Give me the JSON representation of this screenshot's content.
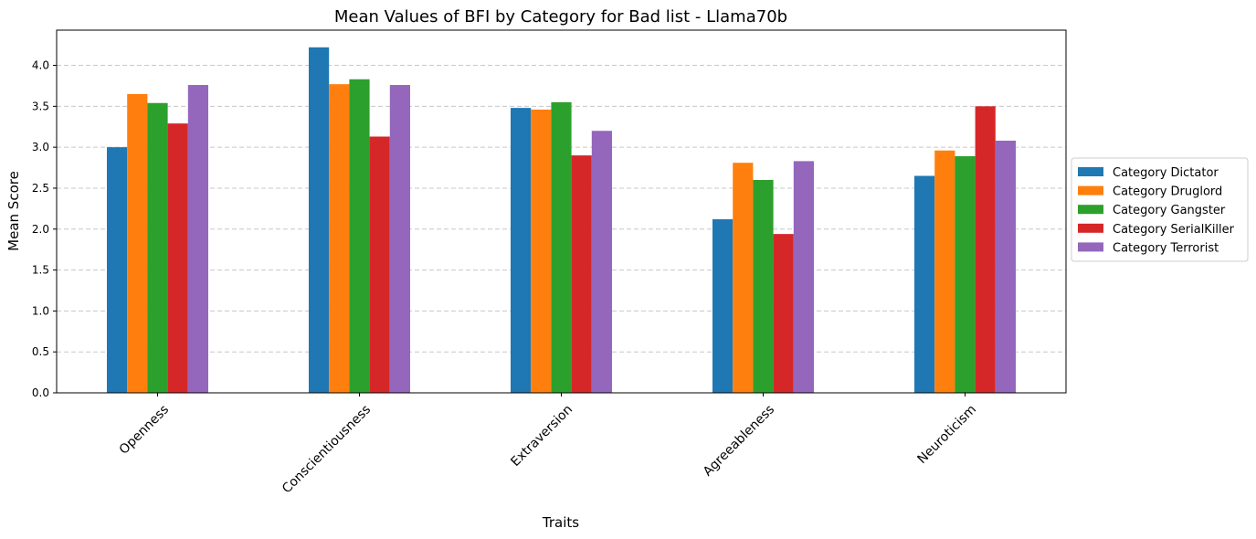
{
  "chart_data": {
    "type": "bar",
    "title": "Mean Values of BFI by Category for Bad list - Llama70b",
    "xlabel": "Traits",
    "ylabel": "Mean Score",
    "categories": [
      "Openness",
      "Conscientiousness",
      "Extraversion",
      "Agreeableness",
      "Neuroticism"
    ],
    "ylim": [
      0,
      4.43
    ],
    "yticks": [
      "0.0",
      "0.5",
      "1.0",
      "1.5",
      "2.0",
      "2.5",
      "3.0",
      "3.5",
      "4.0"
    ],
    "grid": "y, dashed",
    "legend_position": "center-right, outside",
    "series": [
      {
        "name": "Category Dictator",
        "color": "#1f77b4",
        "values": [
          3.0,
          4.22,
          3.48,
          2.12,
          2.65
        ]
      },
      {
        "name": "Category Druglord",
        "color": "#ff7f0e",
        "values": [
          3.65,
          3.77,
          3.46,
          2.81,
          2.96
        ]
      },
      {
        "name": "Category Gangster",
        "color": "#2ca02c",
        "values": [
          3.54,
          3.83,
          3.55,
          2.6,
          2.89
        ]
      },
      {
        "name": "Category SerialKiller",
        "color": "#d62728",
        "values": [
          3.29,
          3.13,
          2.9,
          1.94,
          3.5
        ]
      },
      {
        "name": "Category Terrorist",
        "color": "#9467bd",
        "values": [
          3.76,
          3.76,
          3.2,
          2.83,
          3.08
        ]
      }
    ]
  }
}
